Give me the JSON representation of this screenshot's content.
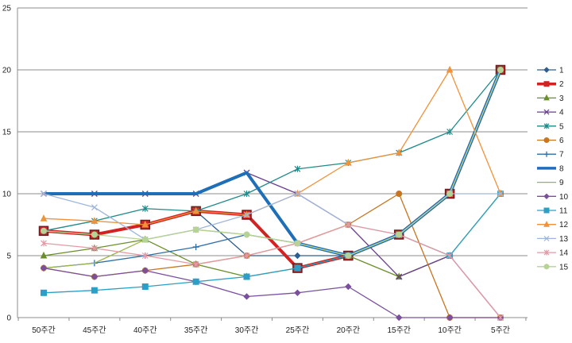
{
  "chart_data": {
    "type": "line",
    "title": "",
    "xlabel": "",
    "ylabel": "",
    "categories": [
      "50주간",
      "45주간",
      "40주간",
      "35주간",
      "30주간",
      "25주간",
      "20주간",
      "15주간",
      "10주간",
      "5주간"
    ],
    "ylim": [
      0,
      25
    ],
    "yticks": [
      0,
      5,
      10,
      15,
      20,
      25
    ],
    "grid": "horizontal",
    "legend": "right",
    "series": [
      {
        "name": "1",
        "color": "#2e5f8e",
        "marker": "diamond",
        "width": 1.3,
        "values": [
          7,
          6.7,
          7.5,
          8.6,
          5,
          5,
          5,
          6.7,
          10,
          20
        ]
      },
      {
        "name": "2",
        "color": "#d22222",
        "marker": "square",
        "width": 4,
        "values": [
          7,
          6.7,
          7.5,
          8.6,
          8.3,
          4,
          5,
          6.7,
          10,
          20
        ]
      },
      {
        "name": "3",
        "color": "#6a8e2a",
        "marker": "triangle",
        "width": 1.3,
        "values": [
          5,
          5.6,
          6.3,
          4.3,
          3.3,
          4,
          5,
          3.3,
          5,
          10
        ]
      },
      {
        "name": "4",
        "color": "#6b3f8e",
        "marker": "x",
        "width": 1.3,
        "values": [
          10,
          10,
          10,
          10,
          11.7,
          10,
          7.5,
          3.3,
          5,
          0
        ]
      },
      {
        "name": "5",
        "color": "#1f8a8a",
        "marker": "star",
        "width": 1.3,
        "values": [
          7,
          7.8,
          8.8,
          8.6,
          10,
          12,
          12.5,
          13.3,
          15,
          20
        ]
      },
      {
        "name": "6",
        "color": "#c8751f",
        "marker": "circle",
        "width": 1.3,
        "values": [
          4,
          3.3,
          3.8,
          4.3,
          5,
          6,
          7.5,
          10,
          0,
          0
        ]
      },
      {
        "name": "7",
        "color": "#2e6ea8",
        "marker": "plus",
        "width": 1.3,
        "values": [
          4,
          4.4,
          5,
          5.7,
          6.7,
          6,
          5,
          6.7,
          10,
          20
        ]
      },
      {
        "name": "8",
        "color": "#1f6fb8",
        "marker": "none",
        "width": 4,
        "values": [
          10,
          10,
          10,
          10,
          11.7,
          6,
          5,
          6.7,
          10,
          20
        ]
      },
      {
        "name": "9",
        "color": "#9ab54a",
        "marker": "none",
        "width": 1.3,
        "values": [
          4,
          4.4,
          6.3,
          7.1,
          6.7,
          6,
          5,
          6.7,
          10,
          20
        ]
      },
      {
        "name": "10",
        "color": "#7a4f9e",
        "marker": "diamond",
        "width": 1.3,
        "values": [
          4,
          3.3,
          3.8,
          2.9,
          1.7,
          2,
          2.5,
          0,
          0,
          0
        ]
      },
      {
        "name": "11",
        "color": "#2aa0c8",
        "marker": "square",
        "width": 1.3,
        "values": [
          2,
          2.2,
          2.5,
          2.9,
          3.3,
          4,
          5,
          6.7,
          5,
          10
        ]
      },
      {
        "name": "12",
        "color": "#f0923a",
        "marker": "triangle",
        "width": 1.3,
        "values": [
          8,
          7.8,
          7.5,
          8.6,
          8.3,
          10,
          12.5,
          13.3,
          20,
          10
        ]
      },
      {
        "name": "13",
        "color": "#9fb7dc",
        "marker": "x",
        "width": 1.3,
        "values": [
          10,
          8.9,
          6.3,
          7.1,
          8.3,
          10,
          7.5,
          6.7,
          10,
          10
        ]
      },
      {
        "name": "14",
        "color": "#e49aa4",
        "marker": "star",
        "width": 1.3,
        "values": [
          6,
          5.6,
          5,
          4.3,
          5,
          6,
          7.5,
          6.7,
          5,
          0
        ]
      },
      {
        "name": "15",
        "color": "#b5d394",
        "marker": "circle",
        "width": 1.3,
        "values": [
          7,
          6.7,
          6.3,
          7.1,
          6.7,
          6,
          5,
          6.7,
          10,
          20
        ]
      }
    ]
  }
}
